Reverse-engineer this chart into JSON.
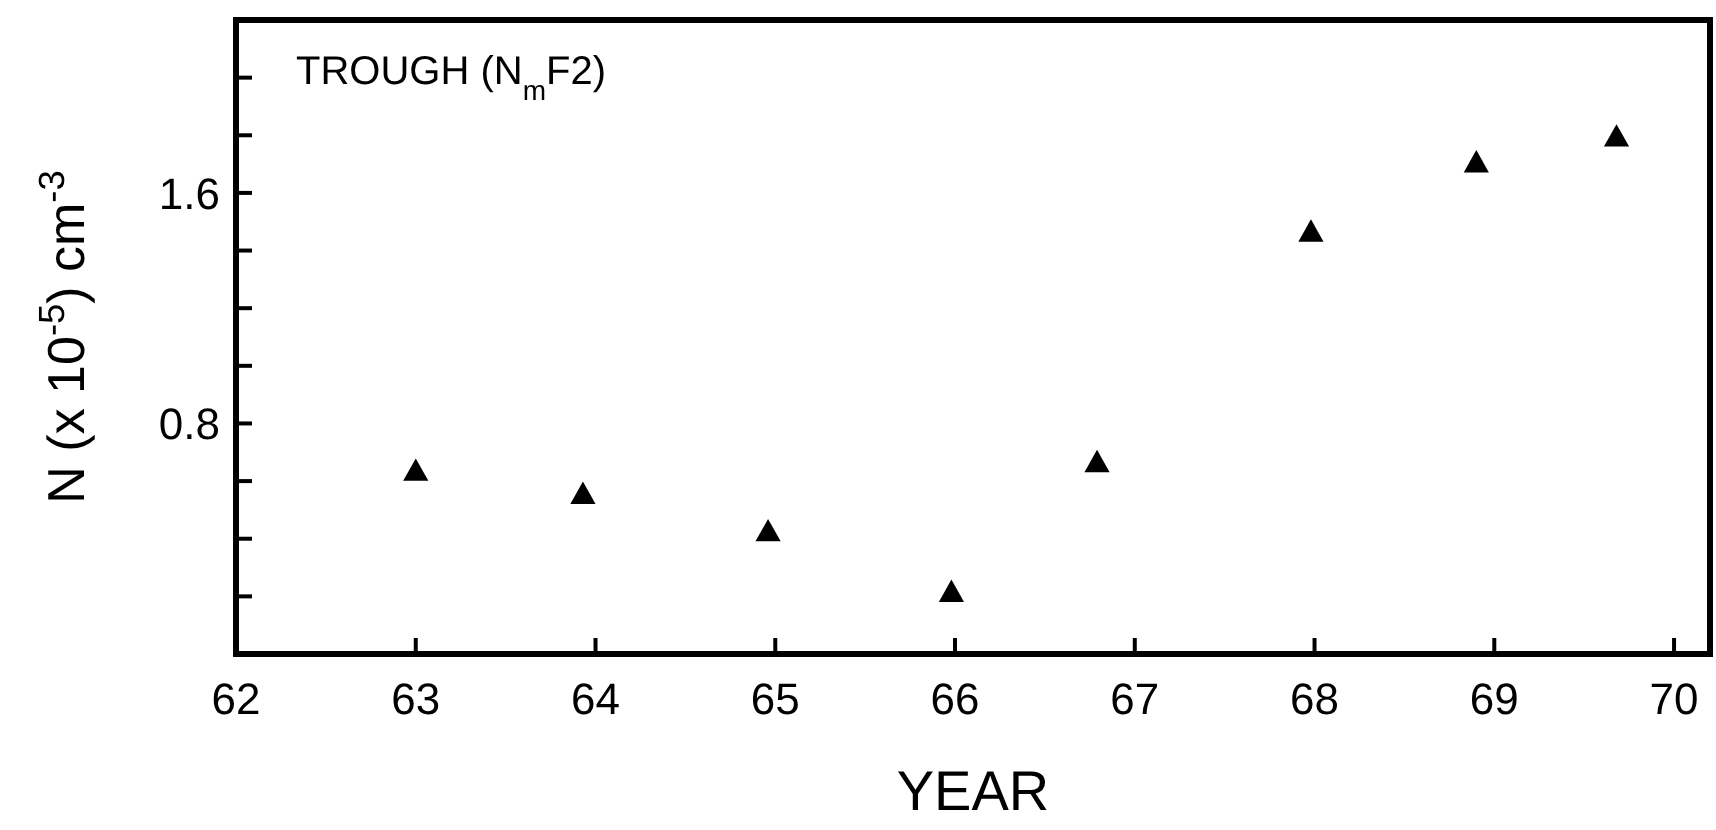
{
  "chart_data": {
    "type": "scatter",
    "xlabel": "YEAR",
    "ylabel": "N (x 10$^{-5}$) cm$^{-3}$",
    "annotations": [
      "TROUGH (N$_{m}$F2)"
    ],
    "x": [
      63,
      63.93,
      64.96,
      65.98,
      66.79,
      67.98,
      68.9,
      69.68
    ],
    "series": [
      {
        "color": "#000000",
        "values": [
          0.63,
          0.55,
          0.42,
          0.21,
          0.66,
          1.46,
          1.7,
          1.79
        ]
      }
    ],
    "marker": "triangle",
    "xlim": [
      62,
      70.2
    ],
    "xticks": [
      62,
      63,
      64,
      65,
      66,
      67,
      68,
      69,
      70
    ],
    "ylim": [
      0,
      2.2
    ],
    "yticks": [
      {
        "value": 0.2,
        "label": null
      },
      {
        "value": 0.4,
        "label": null
      },
      {
        "value": 0.6,
        "label": null
      },
      0.8,
      {
        "value": 1.0,
        "label": null
      },
      {
        "value": 1.2,
        "label": null
      },
      {
        "value": 1.4,
        "label": null
      },
      1.6,
      {
        "value": 1.8,
        "label": null
      },
      {
        "value": 2.0,
        "label": null
      }
    ],
    "grid": false
  }
}
